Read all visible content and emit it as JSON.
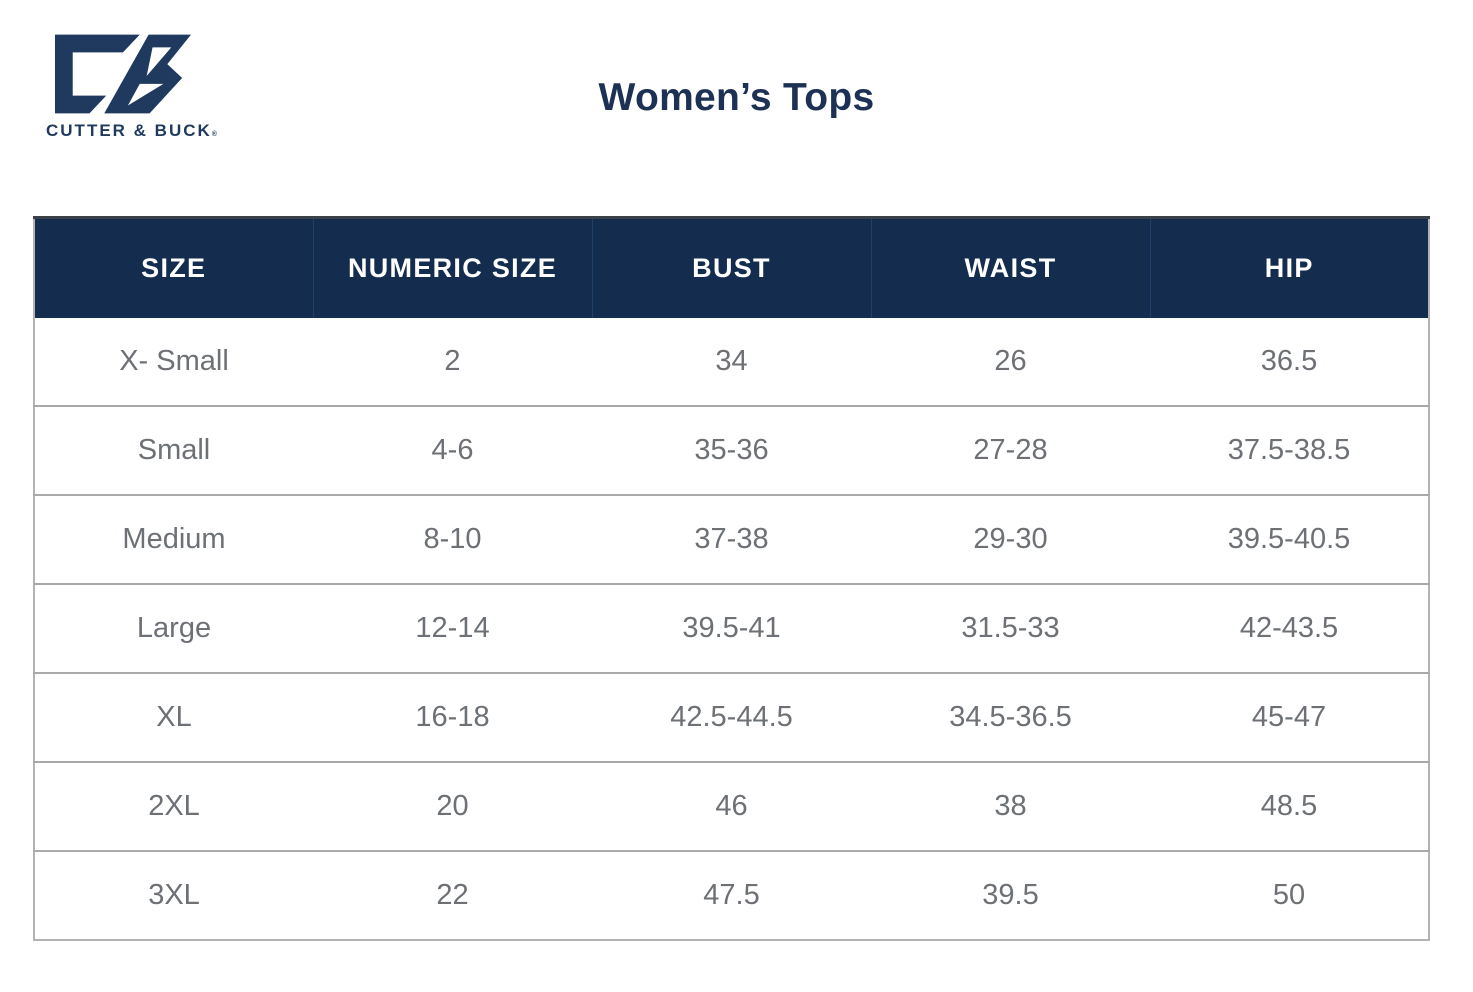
{
  "brand": {
    "wordmark": "CUTTER & BUCK",
    "registered": "®"
  },
  "page_title": "Women’s Tops",
  "colors": {
    "header-navy": "#142c4d",
    "header-divider": "#20416b",
    "header-top-strip": "#3a4149",
    "title-navy": "#1c3154",
    "logo-navy": "#1f3a5e",
    "body-text": "#6d7175",
    "row-border": "#a9a9a9",
    "outer-border": "#b3b3b3"
  },
  "chart_data": {
    "type": "table",
    "title": "Women’s Tops",
    "columns": [
      "SIZE",
      "NUMERIC SIZE",
      "BUST",
      "WAIST",
      "HIP"
    ],
    "rows": [
      [
        "X- Small",
        "2",
        "34",
        "26",
        "36.5"
      ],
      [
        "Small",
        "4-6",
        "35-36",
        "27-28",
        "37.5-38.5"
      ],
      [
        "Medium",
        "8-10",
        "37-38",
        "29-30",
        "39.5-40.5"
      ],
      [
        "Large",
        "12-14",
        "39.5-41",
        "31.5-33",
        "42-43.5"
      ],
      [
        "XL",
        "16-18",
        "42.5-44.5",
        "34.5-36.5",
        "45-47"
      ],
      [
        "2XL",
        "20",
        "46",
        "38",
        "48.5"
      ],
      [
        "3XL",
        "22",
        "47.5",
        "39.5",
        "50"
      ]
    ]
  },
  "table": {
    "headers": [
      "SIZE",
      "NUMERIC SIZE",
      "BUST",
      "WAIST",
      "HIP"
    ],
    "rows": [
      [
        "X- Small",
        "2",
        "34",
        "26",
        "36.5"
      ],
      [
        "Small",
        "4-6",
        "35-36",
        "27-28",
        "37.5-38.5"
      ],
      [
        "Medium",
        "8-10",
        "37-38",
        "29-30",
        "39.5-40.5"
      ],
      [
        "Large",
        "12-14",
        "39.5-41",
        "31.5-33",
        "42-43.5"
      ],
      [
        "XL",
        "16-18",
        "42.5-44.5",
        "34.5-36.5",
        "45-47"
      ],
      [
        "2XL",
        "20",
        "46",
        "38",
        "48.5"
      ],
      [
        "3XL",
        "22",
        "47.5",
        "39.5",
        "50"
      ]
    ]
  }
}
